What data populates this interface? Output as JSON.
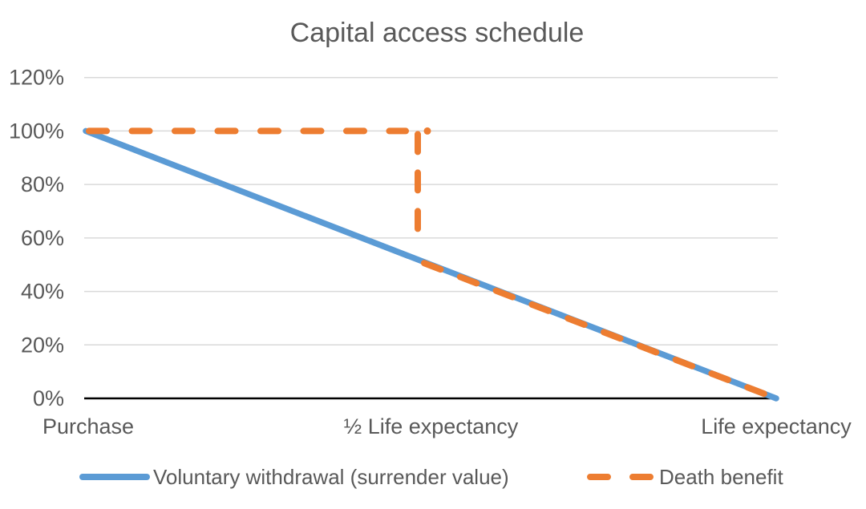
{
  "page": {
    "background": "#ffffff"
  },
  "colors": {
    "series_blue": "#5B9BD5",
    "series_orange": "#ED7D31",
    "grid": "#D9D9D9",
    "axis": "#000000",
    "text": "#595959"
  },
  "chart_data": {
    "type": "line",
    "title": "Capital access schedule",
    "categories": [
      "Purchase",
      "½ Life expectancy",
      "Life expectancy"
    ],
    "category_positions": [
      0,
      0.5,
      1
    ],
    "yticks": [
      "120%",
      "100%",
      "80%",
      "60%",
      "40%",
      "20%",
      "0%"
    ],
    "ytick_values": [
      120,
      100,
      80,
      60,
      40,
      20,
      0
    ],
    "ylim": [
      0,
      120
    ],
    "grid": true,
    "legend_position": "bottom",
    "series": [
      {
        "name": "Voluntary withdrawal (surrender value)",
        "color": "#5B9BD5",
        "style": "solid",
        "points": [
          [
            0,
            100
          ],
          [
            1,
            0
          ]
        ]
      },
      {
        "name": "Death benefit",
        "color": "#ED7D31",
        "style": "dashed",
        "points": [
          [
            0,
            100
          ],
          [
            0.5,
            100
          ],
          [
            0.5,
            50
          ],
          [
            1,
            0
          ]
        ]
      }
    ]
  }
}
